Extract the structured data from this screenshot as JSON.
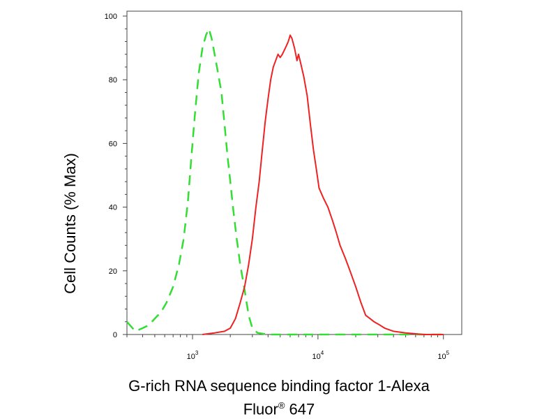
{
  "chart_data": {
    "type": "line",
    "ylabel": "Cell Counts (% Max)",
    "xlabel_line1": "G-rich RNA sequence binding factor 1-Alexa",
    "xlabel_line2_pre": "Fluor",
    "xlabel_line2_sup": "®",
    "xlabel_line2_post": " 647",
    "x_scale": "log",
    "xlim": [
      300,
      140000
    ],
    "ylim": [
      0,
      100
    ],
    "y_ticks": [
      0,
      20,
      40,
      60,
      80,
      100
    ],
    "y_tick_labels": [
      "0",
      "20",
      "40",
      "60",
      "80",
      "100"
    ],
    "x_major_ticks": [
      1000,
      10000,
      100000
    ],
    "x_tick_labels": [
      {
        "base": "10",
        "exp": "3"
      },
      {
        "base": "10",
        "exp": "4"
      },
      {
        "base": "10",
        "exp": "5"
      }
    ],
    "grid": false,
    "series": [
      {
        "color": "#33dd33",
        "style": "dashed",
        "points": [
          [
            300,
            4
          ],
          [
            350,
            1
          ],
          [
            400,
            2
          ],
          [
            450,
            3
          ],
          [
            500,
            5
          ],
          [
            560,
            7
          ],
          [
            620,
            10
          ],
          [
            700,
            15
          ],
          [
            780,
            22
          ],
          [
            850,
            30
          ],
          [
            920,
            42
          ],
          [
            980,
            56
          ],
          [
            1050,
            70
          ],
          [
            1120,
            82
          ],
          [
            1200,
            90
          ],
          [
            1280,
            94
          ],
          [
            1350,
            96
          ],
          [
            1420,
            93
          ],
          [
            1500,
            88
          ],
          [
            1600,
            82
          ],
          [
            1700,
            76
          ],
          [
            1800,
            66
          ],
          [
            1900,
            56
          ],
          [
            2000,
            48
          ],
          [
            2100,
            40
          ],
          [
            2250,
            30
          ],
          [
            2400,
            22
          ],
          [
            2600,
            14
          ],
          [
            2800,
            6
          ],
          [
            3000,
            2
          ],
          [
            3300,
            0.5
          ],
          [
            4000,
            0
          ],
          [
            10000,
            0
          ],
          [
            100000,
            0
          ]
        ]
      },
      {
        "color": "#ee2222",
        "style": "solid",
        "points": [
          [
            1200,
            0
          ],
          [
            1500,
            0.5
          ],
          [
            1800,
            1
          ],
          [
            2000,
            2
          ],
          [
            2200,
            5
          ],
          [
            2400,
            10
          ],
          [
            2600,
            15
          ],
          [
            2800,
            22
          ],
          [
            3000,
            30
          ],
          [
            3200,
            40
          ],
          [
            3400,
            48
          ],
          [
            3600,
            58
          ],
          [
            3800,
            67
          ],
          [
            4000,
            74
          ],
          [
            4200,
            80
          ],
          [
            4400,
            84
          ],
          [
            4600,
            86
          ],
          [
            4800,
            88
          ],
          [
            5000,
            87
          ],
          [
            5200,
            88
          ],
          [
            5500,
            90
          ],
          [
            5800,
            92
          ],
          [
            6000,
            94
          ],
          [
            6200,
            93
          ],
          [
            6500,
            90
          ],
          [
            6800,
            86
          ],
          [
            7000,
            88
          ],
          [
            7300,
            85
          ],
          [
            7700,
            81
          ],
          [
            8200,
            75
          ],
          [
            8700,
            66
          ],
          [
            9200,
            58
          ],
          [
            9700,
            52
          ],
          [
            10200,
            46
          ],
          [
            11000,
            43
          ],
          [
            12000,
            40
          ],
          [
            13000,
            36
          ],
          [
            14000,
            32
          ],
          [
            15000,
            28
          ],
          [
            16500,
            24
          ],
          [
            18000,
            20
          ],
          [
            20000,
            15
          ],
          [
            22000,
            10
          ],
          [
            24000,
            6
          ],
          [
            26000,
            5
          ],
          [
            28000,
            4
          ],
          [
            31000,
            3
          ],
          [
            34000,
            2
          ],
          [
            40000,
            1
          ],
          [
            50000,
            0.5
          ],
          [
            70000,
            0
          ],
          [
            100000,
            0
          ]
        ]
      }
    ]
  }
}
